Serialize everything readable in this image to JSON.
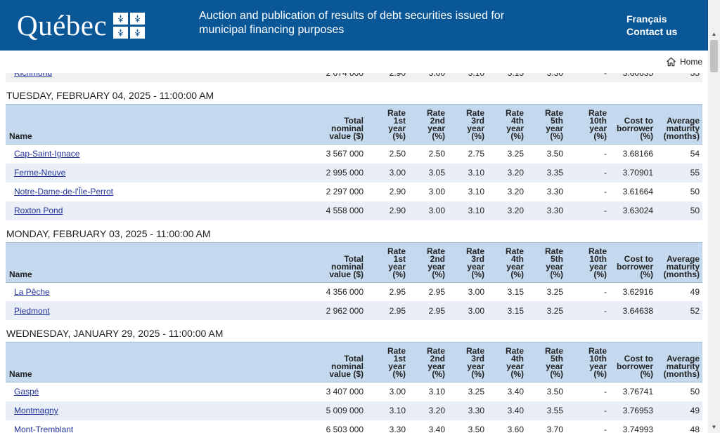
{
  "header": {
    "logo_text": "Québec",
    "title": "Auction and publication of results of debt securities issued for municipal financing purposes",
    "lang_link": "Français",
    "contact_link": "Contact us"
  },
  "nav": {
    "home_label": "Home"
  },
  "columns": {
    "name": "Name",
    "total": [
      "Total",
      "nominal",
      "value ($)"
    ],
    "r1": [
      "Rate",
      "1st",
      "year",
      "(%)"
    ],
    "r2": [
      "Rate",
      "2nd",
      "year",
      "(%)"
    ],
    "r3": [
      "Rate",
      "3rd",
      "year",
      "(%)"
    ],
    "r4": [
      "Rate",
      "4th",
      "year",
      "(%)"
    ],
    "r5": [
      "Rate",
      "5th",
      "year",
      "(%)"
    ],
    "r10": [
      "Rate",
      "10th",
      "year",
      "(%)"
    ],
    "cost": [
      "Cost to",
      "borrower",
      "(%)"
    ],
    "maturity": [
      "Average",
      "maturity",
      "(months)"
    ]
  },
  "partial_row": {
    "name": "Richmond",
    "total": "2 074 000",
    "r1": "2.90",
    "r2": "3.00",
    "r3": "3.10",
    "r4": "3.15",
    "r5": "3.30",
    "r10": "-",
    "cost": "3.60635",
    "maturity": "55"
  },
  "sections": [
    {
      "date": "TUESDAY, FEBRUARY 04, 2025 - 11:00:00 AM",
      "rows": [
        {
          "name": "Cap-Saint-Ignace",
          "total": "3 567 000",
          "r1": "2.50",
          "r2": "2.50",
          "r3": "2.75",
          "r4": "3.25",
          "r5": "3.50",
          "r10": "-",
          "cost": "3.68166",
          "maturity": "54"
        },
        {
          "name": "Ferme-Neuve",
          "total": "2 995 000",
          "r1": "3.00",
          "r2": "3.05",
          "r3": "3.10",
          "r4": "3.20",
          "r5": "3.35",
          "r10": "-",
          "cost": "3.70901",
          "maturity": "55"
        },
        {
          "name": "Notre-Dame-de-l'Île-Perrot",
          "total": "2 297 000",
          "r1": "2.90",
          "r2": "3.00",
          "r3": "3.10",
          "r4": "3.20",
          "r5": "3.30",
          "r10": "-",
          "cost": "3.61664",
          "maturity": "50"
        },
        {
          "name": "Roxton Pond",
          "total": "4 558 000",
          "r1": "2.90",
          "r2": "3.00",
          "r3": "3.10",
          "r4": "3.20",
          "r5": "3.30",
          "r10": "-",
          "cost": "3.63024",
          "maturity": "50"
        }
      ]
    },
    {
      "date": "MONDAY, FEBRUARY 03, 2025 - 11:00:00 AM",
      "rows": [
        {
          "name": "La Pêche",
          "total": "4 356 000",
          "r1": "2.95",
          "r2": "2.95",
          "r3": "3.00",
          "r4": "3.15",
          "r5": "3.25",
          "r10": "-",
          "cost": "3.62916",
          "maturity": "49"
        },
        {
          "name": "Piedmont",
          "total": "2 962 000",
          "r1": "2.95",
          "r2": "2.95",
          "r3": "3.00",
          "r4": "3.15",
          "r5": "3.25",
          "r10": "-",
          "cost": "3.64638",
          "maturity": "52"
        }
      ]
    },
    {
      "date": "WEDNESDAY, JANUARY 29, 2025 - 11:00:00 AM",
      "rows": [
        {
          "name": "Gaspé",
          "total": "3 407 000",
          "r1": "3.00",
          "r2": "3.10",
          "r3": "3.25",
          "r4": "3.40",
          "r5": "3.50",
          "r10": "-",
          "cost": "3.76741",
          "maturity": "50"
        },
        {
          "name": "Montmagny",
          "total": "5 009 000",
          "r1": "3.10",
          "r2": "3.20",
          "r3": "3.30",
          "r4": "3.40",
          "r5": "3.55",
          "r10": "-",
          "cost": "3.76953",
          "maturity": "49"
        },
        {
          "name": "Mont-Tremblant",
          "total": "6 503 000",
          "r1": "3.30",
          "r2": "3.40",
          "r3": "3.50",
          "r4": "3.60",
          "r5": "3.70",
          "r10": "-",
          "cost": "3.74993",
          "maturity": "48"
        }
      ]
    }
  ],
  "colors": {
    "brand_blue": "#095797",
    "header_row": "#c5d9ee",
    "alt_row": "#eaeff7"
  }
}
